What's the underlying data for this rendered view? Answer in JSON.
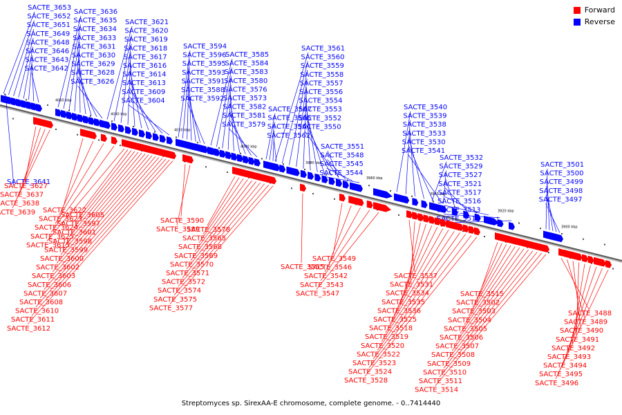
{
  "legend": {
    "forward_label": "Forward",
    "reverse_label": "Reverse",
    "forward_color": "#ff0000",
    "reverse_color": "#0000ff"
  },
  "axis": {
    "ticks": [
      "4060 kbp",
      "4040 kbp",
      "4020 kbp",
      "4000 kbp",
      "3980 kbp",
      "3960 kbp",
      "3940 kbp",
      "3920 kbp",
      "3900 kbp"
    ]
  },
  "caption": "Streptomyces sp. SirexAA-E chromosome, complete genome. - 0..7414440",
  "reverse_groups": [
    [
      "SACTE_3653",
      "SACTE_3652",
      "SACTE_3651",
      "SACTE_3649",
      "SACTE_3648",
      "SACTE_3646",
      "SACTE_3643",
      "SACTE_3642"
    ],
    [
      "SACTE_3636",
      "SACTE_3635",
      "SACTE_3634",
      "SACTE_3633",
      "SACTE_3631",
      "SACTE_3630",
      "SACTE_3629",
      "SACTE_3628",
      "SACTE_3626"
    ],
    [
      "SACTE_3621",
      "SACTE_3620",
      "SACTE_3619",
      "SACTE_3618",
      "SACTE_3617",
      "SACTE_3616",
      "SACTE_3614",
      "SACTE_3613",
      "SACTE_3609",
      "SACTE_3604"
    ],
    [
      "SACTE_3594",
      "SACTE_3596",
      "SACTE_3595",
      "SACTE_3593",
      "SACTE_3591",
      "SACTE_3588",
      "SACTE_3592"
    ],
    [
      "SACTE_3585",
      "SACTE_3584",
      "SACTE_3583",
      "SACTE_3580",
      "SACTE_3576",
      "SACTE_3573",
      "SACTE_3582",
      "SACTE_3581",
      "SACTE_3579"
    ],
    [
      "SACTE_3561",
      "SACTE_3560",
      "SACTE_3559",
      "SACTE_3558",
      "SACTE_3557",
      "SACTE_3556",
      "SACTE_3554",
      "SACTE_3553",
      "SACTE_3552",
      "SACTE_3550"
    ],
    [
      "SACTE_3567",
      "SACTE_3566",
      "SACTE_3564",
      "SACTE_3562"
    ],
    [
      "SACTE_3551",
      "SACTE_3548",
      "SACTE_3545",
      "SACTE_3544"
    ],
    [
      "SACTE_3540",
      "SACTE_3539",
      "SACTE_3538",
      "SACTE_3533",
      "SACTE_3530",
      "SACTE_3541"
    ],
    [
      "SACTE_3532",
      "SACTE_3529",
      "SACTE_3527",
      "SACTE_3521",
      "SACTE_3517",
      "SACTE_3516",
      "SACTE_3513",
      "SACTE_3512"
    ],
    [
      "SACTE_3501",
      "SACTE_3500",
      "SACTE_3499",
      "SACTE_3498",
      "SACTE_3497"
    ],
    [
      "SACTE_3641"
    ]
  ],
  "forward_groups": [
    [
      "SACTE_3627",
      "SACTE_3637",
      "SACTE_3638",
      "SACTE_3639"
    ],
    [
      "SACTE_3622",
      "SACTE_3623",
      "SACTE_3624",
      "SACTE_3625",
      "SACTE_3615"
    ],
    [
      "SACTE_3605",
      "SACTE_3597",
      "SACTE_3601",
      "SACTE_3598",
      "SACTE_3599",
      "SACTE_3600",
      "SACTE_3602",
      "SACTE_3603",
      "SACTE_3606",
      "SACTE_3607",
      "SACTE_3608",
      "SACTE_3610",
      "SACTE_3611",
      "SACTE_3612"
    ],
    [
      "SACTE_3590",
      "SACTE_3589"
    ],
    [
      "SACTE_3578",
      "SACTE_3565",
      "SACTE_3568",
      "SACTE_3569",
      "SACTE_3570",
      "SACTE_3571",
      "SACTE_3572",
      "SACTE_3574",
      "SACTE_3575",
      "SACTE_3577"
    ],
    [
      "SACTE_3555"
    ],
    [
      "SACTE_3549",
      "SACTE_3546",
      "SACTE_3542",
      "SACTE_3543",
      "SACTE_3547"
    ],
    [
      "SACTE_3537",
      "SACTE_3531",
      "SACTE_3534",
      "SACTE_3535",
      "SACTE_3536",
      "SACTE_3525",
      "SACTE_3518",
      "SACTE_3519",
      "SACTE_3520",
      "SACTE_3522",
      "SACTE_3523",
      "SACTE_3524",
      "SACTE_3528"
    ],
    [
      "SACTE_3515",
      "SACTE_3502",
      "SACTE_3503",
      "SACTE_3504",
      "SACTE_3505",
      "SACTE_3506",
      "SACTE_3507",
      "SACTE_3508",
      "SACTE_3509",
      "SACTE_3510",
      "SACTE_3511",
      "SACTE_3514"
    ],
    [
      "SACTE_3488",
      "SACTE_3489",
      "SACTE_3490",
      "SACTE_3491",
      "SACTE_3492",
      "SACTE_3493",
      "SACTE_3494",
      "SACTE_3495",
      "SACTE_3496"
    ]
  ]
}
